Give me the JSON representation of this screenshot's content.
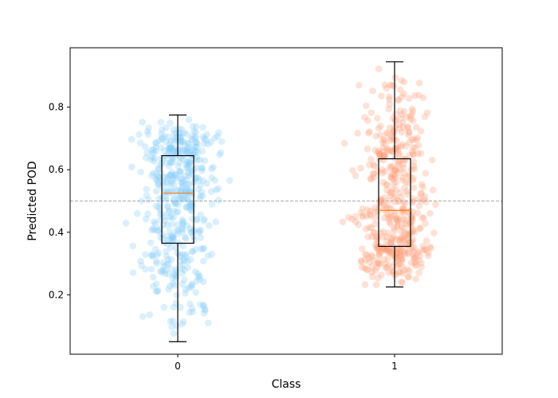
{
  "chart_data": {
    "type": "boxplot",
    "xlabel": "Class",
    "ylabel": "Predicted POD",
    "categories": [
      "0",
      "1"
    ],
    "ylim": [
      0.01,
      0.99
    ],
    "yticks": [
      "0.2",
      "0.4",
      "0.6",
      "0.8"
    ],
    "reference_line": 0.5,
    "grid": false,
    "series": [
      {
        "point_color": "#87CEFA",
        "whisker_low": 0.05,
        "q1": 0.365,
        "median": 0.525,
        "q3": 0.645,
        "whisker_high": 0.775,
        "points_range": [
          0.05,
          0.775
        ]
      },
      {
        "point_color": "#FFA07A",
        "whisker_low": 0.225,
        "q1": 0.355,
        "median": 0.47,
        "q3": 0.635,
        "whisker_high": 0.945,
        "points_range": [
          0.225,
          0.945
        ]
      }
    ],
    "colors": {
      "median": "#FF7F0E",
      "box": "#000000",
      "refline": "#AAAAAA"
    }
  }
}
